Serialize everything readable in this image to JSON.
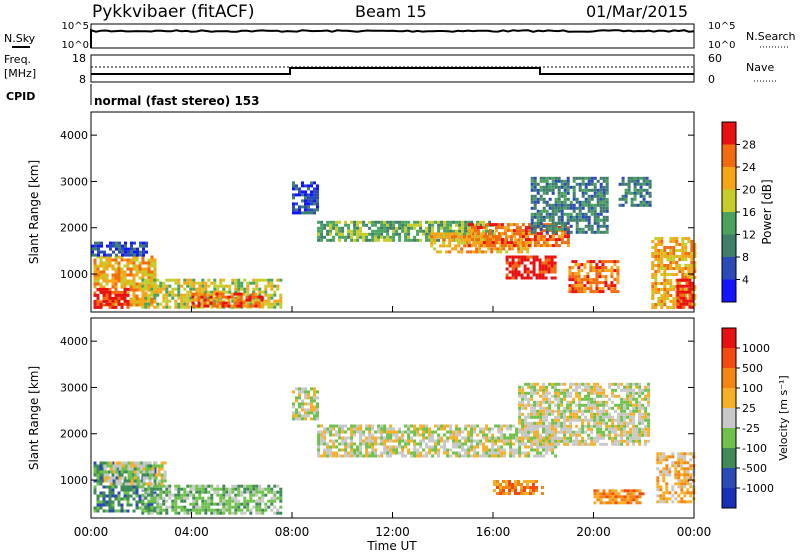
{
  "header": {
    "station": "Pykkvibaer (fitACF)",
    "beam": "Beam 15",
    "date": "01/Mar/2015"
  },
  "noise_panel": {
    "left_label": "N.Sky",
    "right_label": "N.Search",
    "left_ticks": [
      "10^5",
      "10^0"
    ],
    "right_ticks": [
      "10^5",
      "10^0"
    ]
  },
  "freq_panel": {
    "left_label_line1": "Freq.",
    "left_label_line2": "[MHz]",
    "right_label": "Nave",
    "left_ticks": [
      "18",
      "8"
    ],
    "right_ticks": [
      "60",
      "0"
    ]
  },
  "cpid": {
    "label": "CPID",
    "value": "normal (fast stereo) 153"
  },
  "colors": {
    "power": [
      "#1414ff",
      "#2a4ab8",
      "#3f7f6a",
      "#49a25e",
      "#c6cc2a",
      "#f5a516",
      "#f26b10",
      "#e81010"
    ],
    "velocity": [
      "#e81010",
      "#f24a10",
      "#f58512",
      "#f5b028",
      "#c8c8c8",
      "#6ec24a",
      "#3f8a57",
      "#2a4ab8",
      "#1830b8"
    ]
  },
  "chart_data": [
    {
      "type": "heatmap",
      "name": "power",
      "ylabel": "Slant Range [km]",
      "ylim": [
        180,
        4500
      ],
      "yticks": [
        "1000",
        "2000",
        "3000",
        "4000"
      ],
      "xlabel": "",
      "xlim_hours": [
        0,
        24
      ],
      "colorbar": {
        "label": "Power [dB]",
        "ticks": [
          "4",
          "8",
          "12",
          "16",
          "20",
          "24",
          "28"
        ],
        "range": [
          0,
          32
        ]
      },
      "regions": [
        {
          "t0": 0.1,
          "t1": 2.6,
          "r0": 300,
          "r1": 1400,
          "level": 5
        },
        {
          "t0": 0.1,
          "t1": 1.5,
          "r0": 300,
          "r1": 700,
          "level": 7
        },
        {
          "t0": 2.0,
          "t1": 7.6,
          "r0": 300,
          "r1": 900,
          "level": 4
        },
        {
          "t0": 4.0,
          "t1": 6.8,
          "r0": 300,
          "r1": 600,
          "level": 6
        },
        {
          "t0": 0.0,
          "t1": 2.2,
          "r0": 1400,
          "r1": 1700,
          "level": 1
        },
        {
          "t0": 8.0,
          "t1": 9.0,
          "r0": 2300,
          "r1": 3000,
          "level": 1
        },
        {
          "t0": 9.0,
          "t1": 16.0,
          "r0": 1750,
          "r1": 2150,
          "level": 3
        },
        {
          "t0": 13.5,
          "t1": 17.5,
          "r0": 1500,
          "r1": 1900,
          "level": 5
        },
        {
          "t0": 15.0,
          "t1": 19.0,
          "r0": 1600,
          "r1": 2100,
          "level": 6
        },
        {
          "t0": 16.5,
          "t1": 18.5,
          "r0": 900,
          "r1": 1400,
          "level": 7
        },
        {
          "t0": 17.5,
          "t1": 20.5,
          "r0": 1900,
          "r1": 3100,
          "level": 2
        },
        {
          "t0": 19.0,
          "t1": 21.0,
          "r0": 600,
          "r1": 1300,
          "level": 6
        },
        {
          "t0": 21.0,
          "t1": 22.2,
          "r0": 2500,
          "r1": 3100,
          "level": 2
        },
        {
          "t0": 22.3,
          "t1": 24.0,
          "r0": 300,
          "r1": 1800,
          "level": 5
        },
        {
          "t0": 23.3,
          "t1": 24.0,
          "r0": 300,
          "r1": 900,
          "level": 7
        }
      ]
    },
    {
      "type": "heatmap",
      "name": "velocity",
      "ylabel": "Slant Range [km]",
      "ylim": [
        180,
        4500
      ],
      "yticks": [
        "1000",
        "2000",
        "3000",
        "4000"
      ],
      "xlabel": "Time UT",
      "xticks": [
        "00:00",
        "04:00",
        "08:00",
        "12:00",
        "16:00",
        "20:00",
        "00:00"
      ],
      "colorbar": {
        "label": "Velocity [m s⁻¹]",
        "ticks": [
          "1000",
          "500",
          "100",
          "25",
          "-25",
          "-100",
          "-500",
          "-1000"
        ],
        "range": [
          -1250,
          1250
        ]
      },
      "regions": [
        {
          "t0": 0.1,
          "t1": 2.6,
          "r0": 300,
          "r1": 1400,
          "level": 2
        },
        {
          "t0": 2.0,
          "t1": 7.6,
          "r0": 300,
          "r1": 900,
          "level": 3
        },
        {
          "t0": 0.5,
          "t1": 3.0,
          "r0": 900,
          "r1": 1400,
          "level": 4
        },
        {
          "t0": 8.0,
          "t1": 9.0,
          "r0": 2300,
          "r1": 3000,
          "level": 4
        },
        {
          "t0": 9.0,
          "t1": 18.5,
          "r0": 1500,
          "r1": 2200,
          "level": 4
        },
        {
          "t0": 17.0,
          "t1": 22.2,
          "r0": 1800,
          "r1": 3100,
          "level": 4
        },
        {
          "t0": 16.0,
          "t1": 18.0,
          "r0": 700,
          "r1": 1000,
          "level": 6
        },
        {
          "t0": 20.0,
          "t1": 22.0,
          "r0": 500,
          "r1": 800,
          "level": 6
        },
        {
          "t0": 22.5,
          "t1": 24.0,
          "r0": 500,
          "r1": 1600,
          "level": 5
        }
      ]
    }
  ]
}
